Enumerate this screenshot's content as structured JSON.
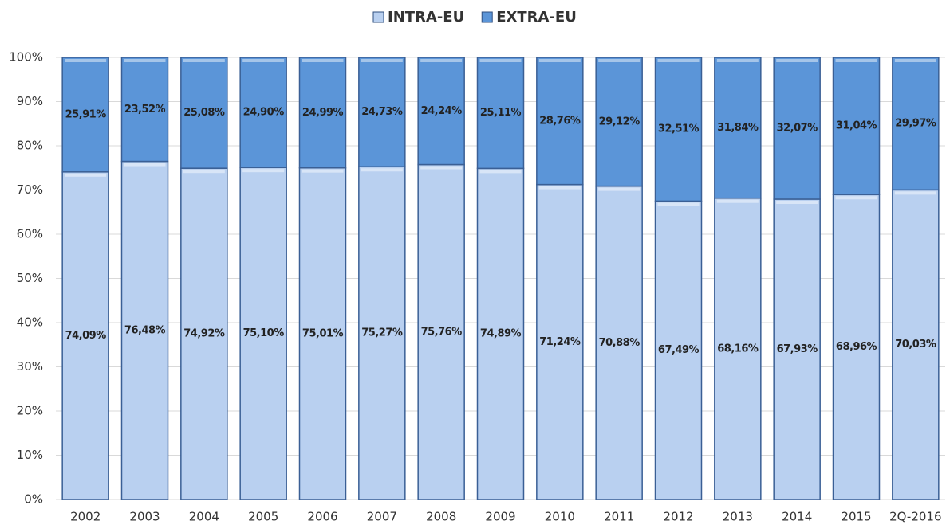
{
  "chart_data": {
    "type": "stacked_bar",
    "categories": [
      "2002",
      "2003",
      "2004",
      "2005",
      "2006",
      "2007",
      "2008",
      "2009",
      "2010",
      "2011",
      "2012",
      "2013",
      "2014",
      "2015",
      "2Q-2016"
    ],
    "series": [
      {
        "name": "INTRA-EU",
        "color": "#b9d0f0",
        "values": [
          74.09,
          76.48,
          74.92,
          75.1,
          75.01,
          75.27,
          75.76,
          74.89,
          71.24,
          70.88,
          67.49,
          68.16,
          67.93,
          68.96,
          70.03
        ],
        "value_labels": [
          "74,09%",
          "76,48%",
          "74,92%",
          "75,10%",
          "75,01%",
          "75,27%",
          "75,76%",
          "74,89%",
          "71,24%",
          "70,88%",
          "67,49%",
          "68,16%",
          "67,93%",
          "68,96%",
          "70,03%"
        ]
      },
      {
        "name": "EXTRA-EU",
        "color": "#5b95d8",
        "values": [
          25.91,
          23.52,
          25.08,
          24.9,
          24.99,
          24.73,
          24.24,
          25.11,
          28.76,
          29.12,
          32.51,
          31.84,
          32.07,
          31.04,
          29.97
        ],
        "value_labels": [
          "25,91%",
          "23,52%",
          "25,08%",
          "24,90%",
          "24,99%",
          "24,73%",
          "24,24%",
          "25,11%",
          "28,76%",
          "29,12%",
          "32,51%",
          "31,84%",
          "32,07%",
          "31,04%",
          "29,97%"
        ]
      }
    ],
    "ylim": [
      0,
      100
    ],
    "yticks": [
      {
        "value": 0,
        "label": "0%"
      },
      {
        "value": 10,
        "label": "10%"
      },
      {
        "value": 20,
        "label": "20%"
      },
      {
        "value": 30,
        "label": "30%"
      },
      {
        "value": 40,
        "label": "40%"
      },
      {
        "value": 50,
        "label": "50%"
      },
      {
        "value": 60,
        "label": "60%"
      },
      {
        "value": 70,
        "label": "70%"
      },
      {
        "value": 80,
        "label": "80%"
      },
      {
        "value": 90,
        "label": "90%"
      },
      {
        "value": 100,
        "label": "100%"
      }
    ],
    "grid": true,
    "legend": "top"
  }
}
